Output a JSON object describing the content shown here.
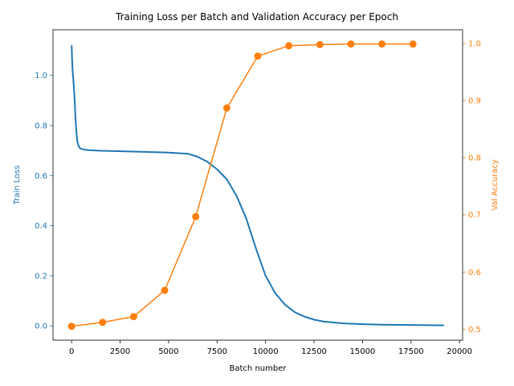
{
  "chart_data": {
    "type": "line",
    "title": "Training Loss per Batch and Validation Accuracy per Epoch",
    "xlabel": "Batch number",
    "xlim": [
      -960,
      20160
    ],
    "xticks": [
      0,
      2500,
      5000,
      7500,
      10000,
      12500,
      15000,
      17500,
      20000
    ],
    "left_axis": {
      "label": "Train Loss",
      "color": "#1f77b4",
      "ylim": [
        -0.057,
        1.182
      ],
      "ticks": [
        0.0,
        0.2,
        0.4,
        0.6,
        0.8,
        1.0
      ],
      "tick_labels": [
        "0.0",
        "0.2",
        "0.4",
        "0.6",
        "0.8",
        "1.0"
      ]
    },
    "right_axis": {
      "label": "Val Accuracy",
      "color": "#ff7f0e",
      "ylim": [
        0.4808,
        1.024
      ],
      "ticks": [
        0.5,
        0.6,
        0.7,
        0.8,
        0.9,
        1.0
      ],
      "tick_labels": [
        "0.5",
        "0.6",
        "0.7",
        "0.8",
        "0.9",
        "1.0"
      ]
    },
    "grid": false,
    "legend": "none",
    "series": [
      {
        "axis": "left",
        "style": "line",
        "color": "#1f77b4",
        "x": [
          0,
          20,
          50,
          100,
          150,
          200,
          250,
          300,
          350,
          400,
          500,
          700,
          1000,
          1500,
          2000,
          3000,
          4000,
          5000,
          6000,
          6500,
          7000,
          7500,
          8000,
          8500,
          9000,
          9500,
          10000,
          10500,
          11000,
          11500,
          12000,
          12500,
          13000,
          14000,
          15000,
          16000,
          17000,
          18000,
          19200
        ],
        "y": [
          1.12,
          1.07,
          1.02,
          0.97,
          0.91,
          0.83,
          0.77,
          0.735,
          0.72,
          0.712,
          0.706,
          0.703,
          0.701,
          0.699,
          0.698,
          0.696,
          0.694,
          0.692,
          0.687,
          0.675,
          0.655,
          0.625,
          0.585,
          0.52,
          0.43,
          0.31,
          0.2,
          0.13,
          0.085,
          0.055,
          0.037,
          0.025,
          0.017,
          0.01,
          0.007,
          0.005,
          0.004,
          0.003,
          0.002
        ]
      },
      {
        "axis": "right",
        "style": "line+marker",
        "color": "#ff7f0e",
        "x": [
          0,
          1600,
          3200,
          4800,
          6400,
          8000,
          9600,
          11200,
          12800,
          14400,
          16000,
          17600
        ],
        "y": [
          0.505,
          0.512,
          0.522,
          0.568,
          0.697,
          0.887,
          0.978,
          0.996,
          0.998,
          0.999,
          0.999,
          0.999
        ]
      }
    ]
  }
}
